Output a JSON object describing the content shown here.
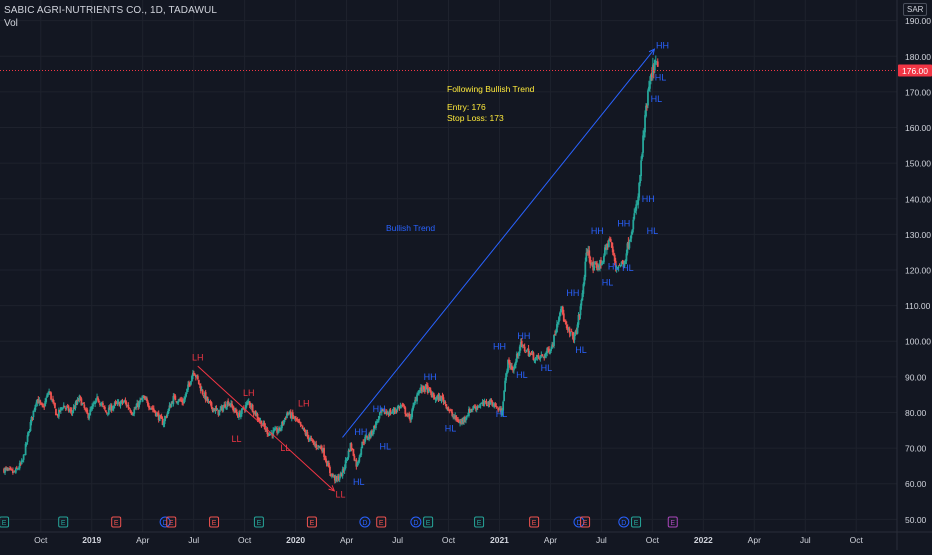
{
  "header": {
    "symbol_line": "SABIC AGRI-NUTRIENTS CO., 1D, TADAWUL",
    "indicator": "Vol",
    "currency": "SAR"
  },
  "price_scale": {
    "ticks": [
      {
        "value": 190,
        "label": "190.00"
      },
      {
        "value": 180,
        "label": "180.00"
      },
      {
        "value": 170,
        "label": "170.00"
      },
      {
        "value": 160,
        "label": "160.00"
      },
      {
        "value": 150,
        "label": "150.00"
      },
      {
        "value": 140,
        "label": "140.00"
      },
      {
        "value": 130,
        "label": "130.00"
      },
      {
        "value": 120,
        "label": "120.00"
      },
      {
        "value": 110,
        "label": "110.00"
      },
      {
        "value": 100,
        "label": "100.00"
      },
      {
        "value": 90,
        "label": "90.00"
      },
      {
        "value": 80,
        "label": "80.00"
      },
      {
        "value": 70,
        "label": "70.00"
      },
      {
        "value": 60,
        "label": "60.00"
      },
      {
        "value": 50,
        "label": "50.00"
      }
    ],
    "current_price": {
      "value": 176.0,
      "label": "176.00"
    }
  },
  "time_axis": {
    "ticks": [
      {
        "t": 2018.75,
        "label": "Oct"
      },
      {
        "t": 2019.0,
        "label": "2019"
      },
      {
        "t": 2019.25,
        "label": "Apr"
      },
      {
        "t": 2019.5,
        "label": "Jul"
      },
      {
        "t": 2019.75,
        "label": "Oct"
      },
      {
        "t": 2020.0,
        "label": "2020"
      },
      {
        "t": 2020.25,
        "label": "Apr"
      },
      {
        "t": 2020.5,
        "label": "Jul"
      },
      {
        "t": 2020.75,
        "label": "Oct"
      },
      {
        "t": 2021.0,
        "label": "2021"
      },
      {
        "t": 2021.25,
        "label": "Apr"
      },
      {
        "t": 2021.5,
        "label": "Jul"
      },
      {
        "t": 2021.75,
        "label": "Oct"
      },
      {
        "t": 2022.0,
        "label": "2022"
      },
      {
        "t": 2022.25,
        "label": "Apr"
      },
      {
        "t": 2022.5,
        "label": "Jul"
      },
      {
        "t": 2022.75,
        "label": "Oct"
      }
    ]
  },
  "annotations": {
    "title": "Following Bullish Trend",
    "entry": "Entry: 176",
    "stop_loss": "Stop Loss: 173",
    "trend_label": "Bullish Trend"
  },
  "colors": {
    "background": "#131722",
    "grid": "#1e222d",
    "text": "#d1d4dc",
    "up": "#26a69a",
    "down": "#ef5350",
    "bearish_line": "#f23645",
    "bullish_line": "#2962ff",
    "label_blue": "#2962ff",
    "label_red": "#f23645",
    "note_yellow": "#ffeb3b",
    "price_tag": "#f23645"
  },
  "chart_data": {
    "type": "candlestick",
    "title": "SABIC AGRI-NUTRIENTS CO., 1D, TADAWUL",
    "y_range": [
      47,
      193
    ],
    "x_range": [
      2018.55,
      2022.95
    ],
    "price_path": [
      [
        2018.57,
        64
      ],
      [
        2018.62,
        63
      ],
      [
        2018.66,
        66
      ],
      [
        2018.7,
        77
      ],
      [
        2018.73,
        84
      ],
      [
        2018.76,
        81
      ],
      [
        2018.79,
        86
      ],
      [
        2018.83,
        79
      ],
      [
        2018.86,
        82
      ],
      [
        2018.9,
        80
      ],
      [
        2018.94,
        84
      ],
      [
        2018.98,
        79
      ],
      [
        2019.03,
        84
      ],
      [
        2019.07,
        80
      ],
      [
        2019.11,
        82
      ],
      [
        2019.16,
        83
      ],
      [
        2019.2,
        80
      ],
      [
        2019.25,
        84
      ],
      [
        2019.3,
        81
      ],
      [
        2019.35,
        77
      ],
      [
        2019.4,
        84
      ],
      [
        2019.45,
        83
      ],
      [
        2019.5,
        92
      ],
      [
        2019.54,
        86
      ],
      [
        2019.58,
        82
      ],
      [
        2019.62,
        80
      ],
      [
        2019.67,
        83
      ],
      [
        2019.72,
        79
      ],
      [
        2019.77,
        83
      ],
      [
        2019.82,
        78
      ],
      [
        2019.87,
        74
      ],
      [
        2019.92,
        75
      ],
      [
        2019.96,
        80
      ],
      [
        2020.0,
        78
      ],
      [
        2020.05,
        74
      ],
      [
        2020.09,
        71
      ],
      [
        2020.13,
        70
      ],
      [
        2020.17,
        63
      ],
      [
        2020.2,
        61
      ],
      [
        2020.23,
        63
      ],
      [
        2020.27,
        71
      ],
      [
        2020.3,
        65
      ],
      [
        2020.33,
        72
      ],
      [
        2020.37,
        74
      ],
      [
        2020.42,
        80
      ],
      [
        2020.47,
        80
      ],
      [
        2020.52,
        82
      ],
      [
        2020.56,
        78
      ],
      [
        2020.6,
        86
      ],
      [
        2020.64,
        87
      ],
      [
        2020.68,
        84
      ],
      [
        2020.72,
        84
      ],
      [
        2020.77,
        79
      ],
      [
        2020.81,
        77
      ],
      [
        2020.86,
        81
      ],
      [
        2020.9,
        82
      ],
      [
        2020.96,
        83
      ],
      [
        2021.01,
        80
      ],
      [
        2021.04,
        94
      ],
      [
        2021.07,
        92
      ],
      [
        2021.1,
        99
      ],
      [
        2021.14,
        97
      ],
      [
        2021.18,
        95
      ],
      [
        2021.22,
        96
      ],
      [
        2021.26,
        99
      ],
      [
        2021.3,
        110
      ],
      [
        2021.33,
        103
      ],
      [
        2021.37,
        101
      ],
      [
        2021.4,
        110
      ],
      [
        2021.43,
        126
      ],
      [
        2021.46,
        120
      ],
      [
        2021.5,
        122
      ],
      [
        2021.54,
        129
      ],
      [
        2021.57,
        121
      ],
      [
        2021.61,
        122
      ],
      [
        2021.65,
        132
      ],
      [
        2021.68,
        140
      ],
      [
        2021.71,
        160
      ],
      [
        2021.73,
        170
      ],
      [
        2021.76,
        178
      ],
      [
        2021.78,
        176
      ]
    ],
    "labels": [
      {
        "t": 2019.52,
        "v": 95.5,
        "text": "LH",
        "color": "red"
      },
      {
        "t": 2019.77,
        "v": 85.5,
        "text": "LH",
        "color": "red"
      },
      {
        "t": 2020.04,
        "v": 82.5,
        "text": "LH",
        "color": "red"
      },
      {
        "t": 2019.71,
        "v": 72.5,
        "text": "LL",
        "color": "red"
      },
      {
        "t": 2019.95,
        "v": 70,
        "text": "LL",
        "color": "red"
      },
      {
        "t": 2020.22,
        "v": 57,
        "text": "LL",
        "color": "red"
      },
      {
        "t": 2020.32,
        "v": 74.5,
        "text": "HH",
        "color": "blue"
      },
      {
        "t": 2020.41,
        "v": 81,
        "text": "HH",
        "color": "blue"
      },
      {
        "t": 2020.66,
        "v": 90,
        "text": "HH",
        "color": "blue"
      },
      {
        "t": 2020.31,
        "v": 60.5,
        "text": "HL",
        "color": "blue"
      },
      {
        "t": 2020.44,
        "v": 70.5,
        "text": "HL",
        "color": "blue"
      },
      {
        "t": 2020.76,
        "v": 75.5,
        "text": "HL",
        "color": "blue"
      },
      {
        "t": 2021.01,
        "v": 79.5,
        "text": "HL",
        "color": "blue"
      },
      {
        "t": 2021.0,
        "v": 98.5,
        "text": "HH",
        "color": "blue"
      },
      {
        "t": 2021.12,
        "v": 101.5,
        "text": "HH",
        "color": "blue"
      },
      {
        "t": 2021.36,
        "v": 113.5,
        "text": "HH",
        "color": "blue"
      },
      {
        "t": 2021.48,
        "v": 131,
        "text": "HH",
        "color": "blue"
      },
      {
        "t": 2021.61,
        "v": 133,
        "text": "HH",
        "color": "blue"
      },
      {
        "t": 2021.73,
        "v": 140,
        "text": "HH",
        "color": "blue"
      },
      {
        "t": 2021.8,
        "v": 183,
        "text": "HH",
        "color": "blue"
      },
      {
        "t": 2021.11,
        "v": 90.5,
        "text": "HL",
        "color": "blue"
      },
      {
        "t": 2021.23,
        "v": 92.5,
        "text": "HL",
        "color": "blue"
      },
      {
        "t": 2021.4,
        "v": 97.5,
        "text": "HL",
        "color": "blue"
      },
      {
        "t": 2021.53,
        "v": 116.5,
        "text": "HL",
        "color": "blue"
      },
      {
        "t": 2021.56,
        "v": 121,
        "text": "HL",
        "color": "blue"
      },
      {
        "t": 2021.63,
        "v": 120.5,
        "text": "HL",
        "color": "blue"
      },
      {
        "t": 2021.75,
        "v": 131,
        "text": "HL",
        "color": "blue"
      },
      {
        "t": 2021.77,
        "v": 168,
        "text": "HL",
        "color": "blue"
      },
      {
        "t": 2021.79,
        "v": 174,
        "text": "HL",
        "color": "blue"
      }
    ],
    "lines": [
      {
        "name": "bearish",
        "from": [
          2019.52,
          93
        ],
        "to": [
          2020.19,
          58
        ]
      },
      {
        "name": "bullish",
        "from": [
          2020.23,
          73
        ],
        "to": [
          2021.76,
          182
        ]
      }
    ],
    "events": [
      {
        "t": 2018.57,
        "kind": "E",
        "color": "green"
      },
      {
        "t": 2018.86,
        "kind": "E",
        "color": "green"
      },
      {
        "t": 2019.12,
        "kind": "E",
        "color": "red"
      },
      {
        "t": 2019.36,
        "kind": "D",
        "color": "blue"
      },
      {
        "t": 2019.39,
        "kind": "E",
        "color": "red"
      },
      {
        "t": 2019.6,
        "kind": "E",
        "color": "red"
      },
      {
        "t": 2019.82,
        "kind": "E",
        "color": "green"
      },
      {
        "t": 2020.08,
        "kind": "E",
        "color": "red"
      },
      {
        "t": 2020.34,
        "kind": "D",
        "color": "blue"
      },
      {
        "t": 2020.42,
        "kind": "E",
        "color": "red"
      },
      {
        "t": 2020.59,
        "kind": "D",
        "color": "blue"
      },
      {
        "t": 2020.65,
        "kind": "E",
        "color": "green"
      },
      {
        "t": 2020.9,
        "kind": "E",
        "color": "green"
      },
      {
        "t": 2021.17,
        "kind": "E",
        "color": "red"
      },
      {
        "t": 2021.39,
        "kind": "D",
        "color": "blue"
      },
      {
        "t": 2021.42,
        "kind": "E",
        "color": "red"
      },
      {
        "t": 2021.61,
        "kind": "D",
        "color": "blue"
      },
      {
        "t": 2021.67,
        "kind": "E",
        "color": "green"
      },
      {
        "t": 2021.85,
        "kind": "E",
        "color": "purple"
      }
    ]
  }
}
